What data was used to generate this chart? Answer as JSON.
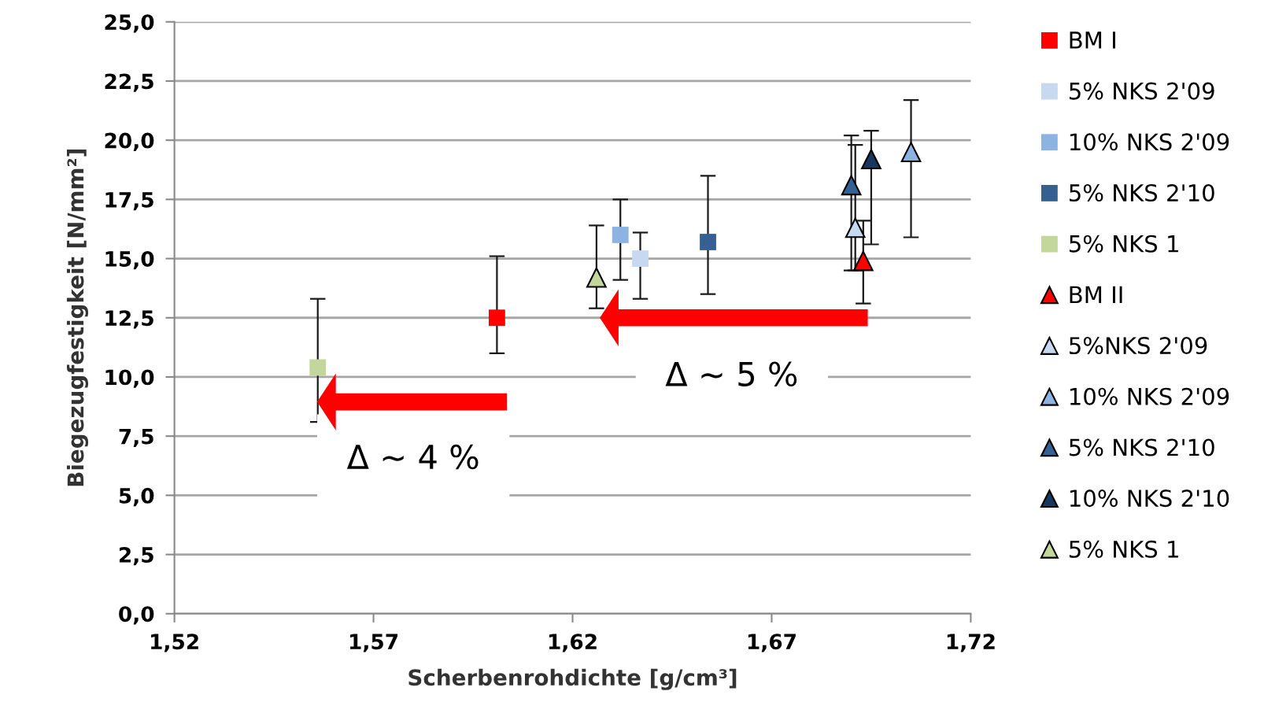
{
  "chart_data": {
    "type": "scatter",
    "xlabel": "Scherbenrohdichte [g/cm³]",
    "ylabel": "Biegezugfestigkeit [N/mm²]",
    "xlim": [
      1.52,
      1.72
    ],
    "ylim": [
      0,
      25
    ],
    "xticks": [
      {
        "value": 1.52,
        "label": "1,52"
      },
      {
        "value": 1.57,
        "label": "1,57"
      },
      {
        "value": 1.62,
        "label": "1,62"
      },
      {
        "value": 1.67,
        "label": "1,67"
      },
      {
        "value": 1.72,
        "label": "1,72"
      }
    ],
    "yticks": [
      {
        "value": 0,
        "label": "0,0"
      },
      {
        "value": 2.5,
        "label": "2,5"
      },
      {
        "value": 5,
        "label": "5,0"
      },
      {
        "value": 7.5,
        "label": "7,5"
      },
      {
        "value": 10,
        "label": "10,0"
      },
      {
        "value": 12.5,
        "label": "12,5"
      },
      {
        "value": 15,
        "label": "15,0"
      },
      {
        "value": 17.5,
        "label": "17,5"
      },
      {
        "value": 20,
        "label": "20,0"
      },
      {
        "value": 22.5,
        "label": "22,5"
      },
      {
        "value": 25,
        "label": "25,0"
      }
    ],
    "grid": "y",
    "legend": "right",
    "series": [
      {
        "name": "BM I",
        "color": "#ff0000",
        "marker": "square",
        "x": [
          1.601
        ],
        "values": [
          12.5
        ],
        "errors": [
          [
            11.0,
            15.1
          ]
        ]
      },
      {
        "name": "5% NKS 2'09",
        "color": "#c6d9f1",
        "marker": "square",
        "x": [
          1.637
        ],
        "values": [
          15.0
        ],
        "errors": [
          [
            13.3,
            16.1
          ]
        ]
      },
      {
        "name": "10% NKS 2'09",
        "color": "#8db3e2",
        "marker": "square",
        "x": [
          1.632
        ],
        "values": [
          16.0
        ],
        "errors": [
          [
            14.1,
            17.5
          ]
        ]
      },
      {
        "name": "5% NKS 2'10",
        "color": "#376092",
        "marker": "square",
        "x": [
          1.654
        ],
        "values": [
          15.7
        ],
        "errors": [
          [
            13.5,
            18.5
          ]
        ]
      },
      {
        "name": "5% NKS 1",
        "color": "#c3d69b",
        "marker": "square",
        "x": [
          1.556
        ],
        "values": [
          10.4
        ],
        "errors": [
          [
            8.1,
            13.3
          ]
        ]
      },
      {
        "name": "BM II",
        "color": "#ff0000",
        "marker": "triangle",
        "x": [
          1.693
        ],
        "values": [
          14.9
        ],
        "errors": [
          [
            13.1,
            16.6
          ]
        ]
      },
      {
        "name": "5%NKS 2'09",
        "color": "#c6d9f1",
        "marker": "triangle",
        "x": [
          1.691
        ],
        "values": [
          16.3
        ],
        "errors": [
          [
            14.5,
            19.8
          ]
        ]
      },
      {
        "name": "10% NKS 2'09",
        "color": "#8db3e2",
        "marker": "triangle",
        "x": [
          1.705
        ],
        "values": [
          19.5
        ],
        "errors": [
          [
            15.9,
            21.7
          ]
        ]
      },
      {
        "name": "5% NKS 2'10",
        "color": "#376092",
        "marker": "triangle",
        "x": [
          1.69
        ],
        "values": [
          18.1
        ],
        "errors": [
          [
            14.5,
            20.2
          ]
        ]
      },
      {
        "name": "10% NKS 2'10",
        "color": "#17375e",
        "marker": "triangle",
        "x": [
          1.695
        ],
        "values": [
          19.2
        ],
        "errors": [
          [
            15.6,
            20.4
          ]
        ]
      },
      {
        "name": "5% NKS 1",
        "color": "#c3d69b",
        "marker": "triangle",
        "x": [
          1.626
        ],
        "values": [
          14.2
        ],
        "errors": [
          [
            12.9,
            16.4
          ]
        ]
      }
    ],
    "annotations": [
      "Δ ~ 5 %",
      "Δ ~ 4 %"
    ]
  }
}
